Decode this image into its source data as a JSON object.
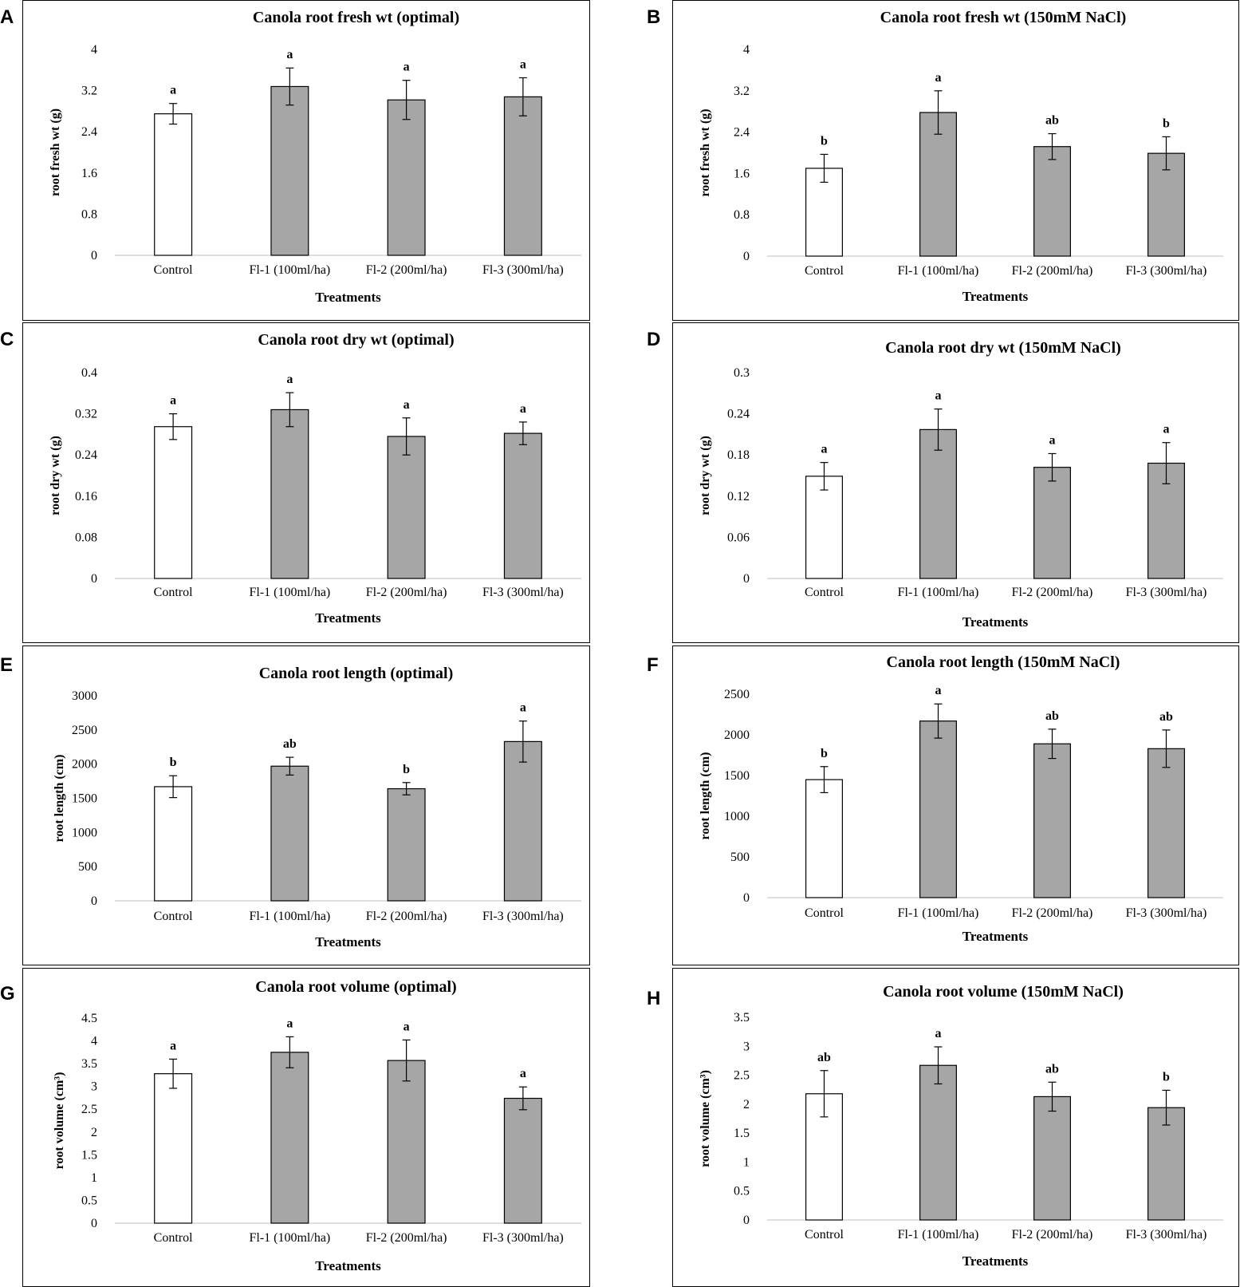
{
  "colors": {
    "control_fill": "#ffffff",
    "treatment_fill": "#a6a6a6",
    "bar_stroke": "#000000"
  },
  "chart_data": [
    {
      "panel": "A",
      "type": "bar",
      "title": "Canola root fresh wt (optimal)",
      "xlabel": "Treatments",
      "ylabel": "root fresh wt (g)",
      "categories": [
        "Control",
        "Fl-1 (100ml/ha)",
        "Fl-2 (200ml/ha)",
        "Fl-3 (300ml/ha)"
      ],
      "values": [
        2.75,
        3.28,
        3.02,
        3.08
      ],
      "errors": [
        0.2,
        0.36,
        0.38,
        0.37
      ],
      "significance": [
        "a",
        "a",
        "a",
        "a"
      ],
      "ylim": [
        0,
        4
      ],
      "yticks": [
        "0",
        "0.8",
        "1.6",
        "2.4",
        "3.2",
        "4"
      ]
    },
    {
      "panel": "B",
      "type": "bar",
      "title": "Canola root fresh wt (150mM NaCl)",
      "xlabel": "Treatments",
      "ylabel": "root fresh wt (g)",
      "categories": [
        "Control",
        "Fl-1 (100ml/ha)",
        "Fl-2 (200ml/ha)",
        "Fl-3 (300ml/ha)"
      ],
      "values": [
        1.7,
        2.78,
        2.12,
        1.99
      ],
      "errors": [
        0.27,
        0.42,
        0.25,
        0.32
      ],
      "significance": [
        "b",
        "a",
        "ab",
        "b"
      ],
      "ylim": [
        0,
        4
      ],
      "yticks": [
        "0",
        "0.8",
        "1.6",
        "2.4",
        "3.2",
        "4"
      ]
    },
    {
      "panel": "C",
      "type": "bar",
      "title": "Canola root dry wt (optimal)",
      "xlabel": "Treatments",
      "ylabel": "root dry wt (g)",
      "categories": [
        "Control",
        "Fl-1 (100ml/ha)",
        "Fl-2 (200ml/ha)",
        "Fl-3 (300ml/ha)"
      ],
      "values": [
        0.295,
        0.328,
        0.276,
        0.282
      ],
      "errors": [
        0.025,
        0.033,
        0.036,
        0.022
      ],
      "significance": [
        "a",
        "a",
        "a",
        "a"
      ],
      "ylim": [
        0,
        0.4
      ],
      "yticks": [
        "0",
        "0.08",
        "0.16",
        "0.24",
        "0.32",
        "0.4"
      ]
    },
    {
      "panel": "D",
      "type": "bar",
      "title": "Canola root dry wt (150mM NaCl)",
      "xlabel": "Treatments",
      "ylabel": "root dry wt (g)",
      "categories": [
        "Control",
        "Fl-1 (100ml/ha)",
        "Fl-2 (200ml/ha)",
        "Fl-3 (300ml/ha)"
      ],
      "values": [
        0.149,
        0.217,
        0.162,
        0.168
      ],
      "errors": [
        0.02,
        0.03,
        0.02,
        0.03
      ],
      "significance": [
        "a",
        "a",
        "a",
        "a"
      ],
      "ylim": [
        0,
        0.3
      ],
      "yticks": [
        "0",
        "0.06",
        "0.12",
        "0.18",
        "0.24",
        "0.3"
      ]
    },
    {
      "panel": "E",
      "type": "bar",
      "title": "Canola root length (optimal)",
      "xlabel": "Treatments",
      "ylabel": "root length (cm)",
      "categories": [
        "Control",
        "Fl-1 (100ml/ha)",
        "Fl-2 (200ml/ha)",
        "Fl-3 (300ml/ha)"
      ],
      "values": [
        1670,
        1970,
        1640,
        2330
      ],
      "errors": [
        160,
        130,
        90,
        300
      ],
      "significance": [
        "b",
        "ab",
        "b",
        "a"
      ],
      "ylim": [
        0,
        3000
      ],
      "yticks": [
        "0",
        "500",
        "1000",
        "1500",
        "2000",
        "2500",
        "3000"
      ]
    },
    {
      "panel": "F",
      "type": "bar",
      "title": "Canola root length (150mM NaCl)",
      "xlabel": "Treatments",
      "ylabel": "root length (cm)",
      "categories": [
        "Control",
        "Fl-1 (100ml/ha)",
        "Fl-2 (200ml/ha)",
        "Fl-3 (300ml/ha)"
      ],
      "values": [
        1450,
        2170,
        1890,
        1830
      ],
      "errors": [
        160,
        210,
        180,
        230
      ],
      "significance": [
        "b",
        "a",
        "ab",
        "ab"
      ],
      "ylim": [
        0,
        2500
      ],
      "yticks": [
        "0",
        "500",
        "1000",
        "1500",
        "2000",
        "2500"
      ]
    },
    {
      "panel": "G",
      "type": "bar",
      "title": "Canola root volume (optimal)",
      "xlabel": "Treatments",
      "ylabel": "root volume (cm³)",
      "categories": [
        "Control",
        "Fl-1 (100ml/ha)",
        "Fl-2 (200ml/ha)",
        "Fl-3 (300ml/ha)"
      ],
      "values": [
        3.28,
        3.75,
        3.57,
        2.74
      ],
      "errors": [
        0.32,
        0.34,
        0.45,
        0.25
      ],
      "significance": [
        "a",
        "a",
        "a",
        "a"
      ],
      "ylim": [
        0,
        4.5
      ],
      "yticks": [
        "0",
        "0.5",
        "1",
        "1.5",
        "2",
        "2.5",
        "3",
        "3.5",
        "4",
        "4.5"
      ]
    },
    {
      "panel": "H",
      "type": "bar",
      "title": "Canola root volume (150mM NaCl)",
      "xlabel": "Treatments",
      "ylabel": "root volume (cm³)",
      "categories": [
        "Control",
        "Fl-1 (100ml/ha)",
        "Fl-2 (200ml/ha)",
        "Fl-3 (300ml/ha)"
      ],
      "values": [
        2.18,
        2.67,
        2.13,
        1.94
      ],
      "errors": [
        0.4,
        0.32,
        0.25,
        0.3
      ],
      "significance": [
        "ab",
        "a",
        "ab",
        "b"
      ],
      "ylim": [
        0,
        3.5
      ],
      "yticks": [
        "0",
        "0.5",
        "1",
        "1.5",
        "2",
        "2.5",
        "3",
        "3.5"
      ]
    }
  ]
}
